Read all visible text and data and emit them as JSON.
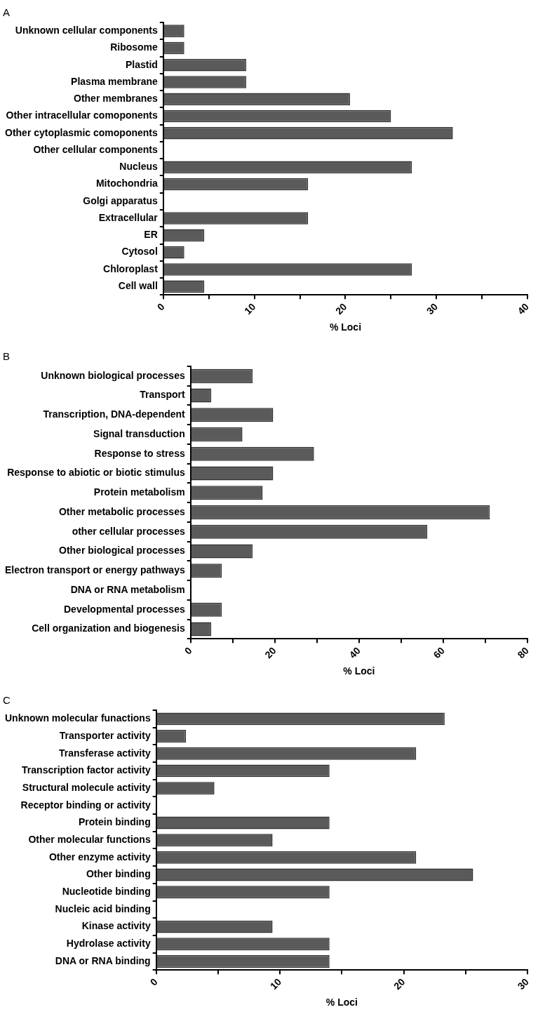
{
  "chart_data": [
    {
      "type": "bar",
      "title": "A",
      "orientation": "horizontal",
      "xlabel": "% Loci",
      "categories": [
        "Unknown cellular components",
        "Ribosome",
        "Plastid",
        "Plasma membrane",
        "Other membranes",
        "Other intracellular comoponents",
        "Other cytoplasmic comoponents",
        "Other cellular components",
        "Nucleus",
        "Mitochondria",
        "Golgi apparatus",
        "Extracellular",
        "ER",
        "Cytosol",
        "Chloroplast",
        "Cell wall"
      ],
      "values": [
        2.3,
        2.3,
        9.1,
        9.1,
        20.5,
        25.0,
        31.8,
        0,
        27.3,
        15.9,
        0,
        15.9,
        4.5,
        2.3,
        27.3,
        4.5
      ],
      "color": "#5a5a5a",
      "xlim": [
        0,
        40
      ],
      "xticks": [
        0,
        {
          "value": 5,
          "label": null
        },
        10,
        {
          "value": 15,
          "label": null
        },
        20,
        {
          "value": 25,
          "label": null
        },
        30,
        {
          "value": 35,
          "label": null
        },
        40
      ],
      "grid": false,
      "legend": false
    },
    {
      "type": "bar",
      "title": "B",
      "orientation": "horizontal",
      "xlabel": "% Loci",
      "categories": [
        "Unknown biological processes",
        "Transport",
        "Transcription, DNA-dependent",
        "Signal transduction",
        "Response to stress",
        "Response to abiotic or biotic stimulus",
        "Protein metabolism",
        "Other metabolic processes",
        "other cellular processes",
        "Other biological processes",
        "Electron transport or energy pathways",
        "DNA or RNA metabolism",
        "Developmental processes",
        "Cell organization and biogenesis"
      ],
      "values": [
        14.7,
        4.9,
        19.6,
        12.3,
        29.3,
        19.6,
        17.1,
        71,
        56.2,
        14.7,
        7.4,
        0,
        7.4,
        4.9
      ],
      "color": "#5a5a5a",
      "xlim": [
        0,
        80
      ],
      "xticks": [
        0,
        {
          "value": 10,
          "label": null
        },
        20,
        {
          "value": 30,
          "label": null
        },
        40,
        {
          "value": 50,
          "label": null
        },
        60,
        {
          "value": 70,
          "label": null
        },
        80
      ],
      "grid": false,
      "legend": false
    },
    {
      "type": "bar",
      "title": "C",
      "orientation": "horizontal",
      "xlabel": "% Loci",
      "categories": [
        "Unknown molecular funactions",
        "Transporter activity",
        "Transferase activity",
        "Transcription factor activity",
        "Structural molecule activity",
        "Receptor binding or activity",
        "Protein binding",
        "Other molecular functions",
        "Other enzyme activity",
        "Other binding",
        "Nucleotide binding",
        "Nucleic acid binding",
        "Kinase activity",
        "Hydrolase activity",
        "DNA or RNA binding"
      ],
      "values": [
        23.3,
        2.4,
        21.0,
        14.0,
        4.7,
        0,
        14.0,
        9.4,
        21.0,
        25.6,
        14.0,
        0,
        9.4,
        14.0,
        14.0
      ],
      "color": "#5a5a5a",
      "xlim": [
        0,
        30
      ],
      "xticks": [
        0,
        {
          "value": 5,
          "label": null
        },
        10,
        {
          "value": 15,
          "label": null
        },
        20,
        {
          "value": 25,
          "label": null
        },
        30
      ],
      "grid": false,
      "legend": false
    }
  ]
}
